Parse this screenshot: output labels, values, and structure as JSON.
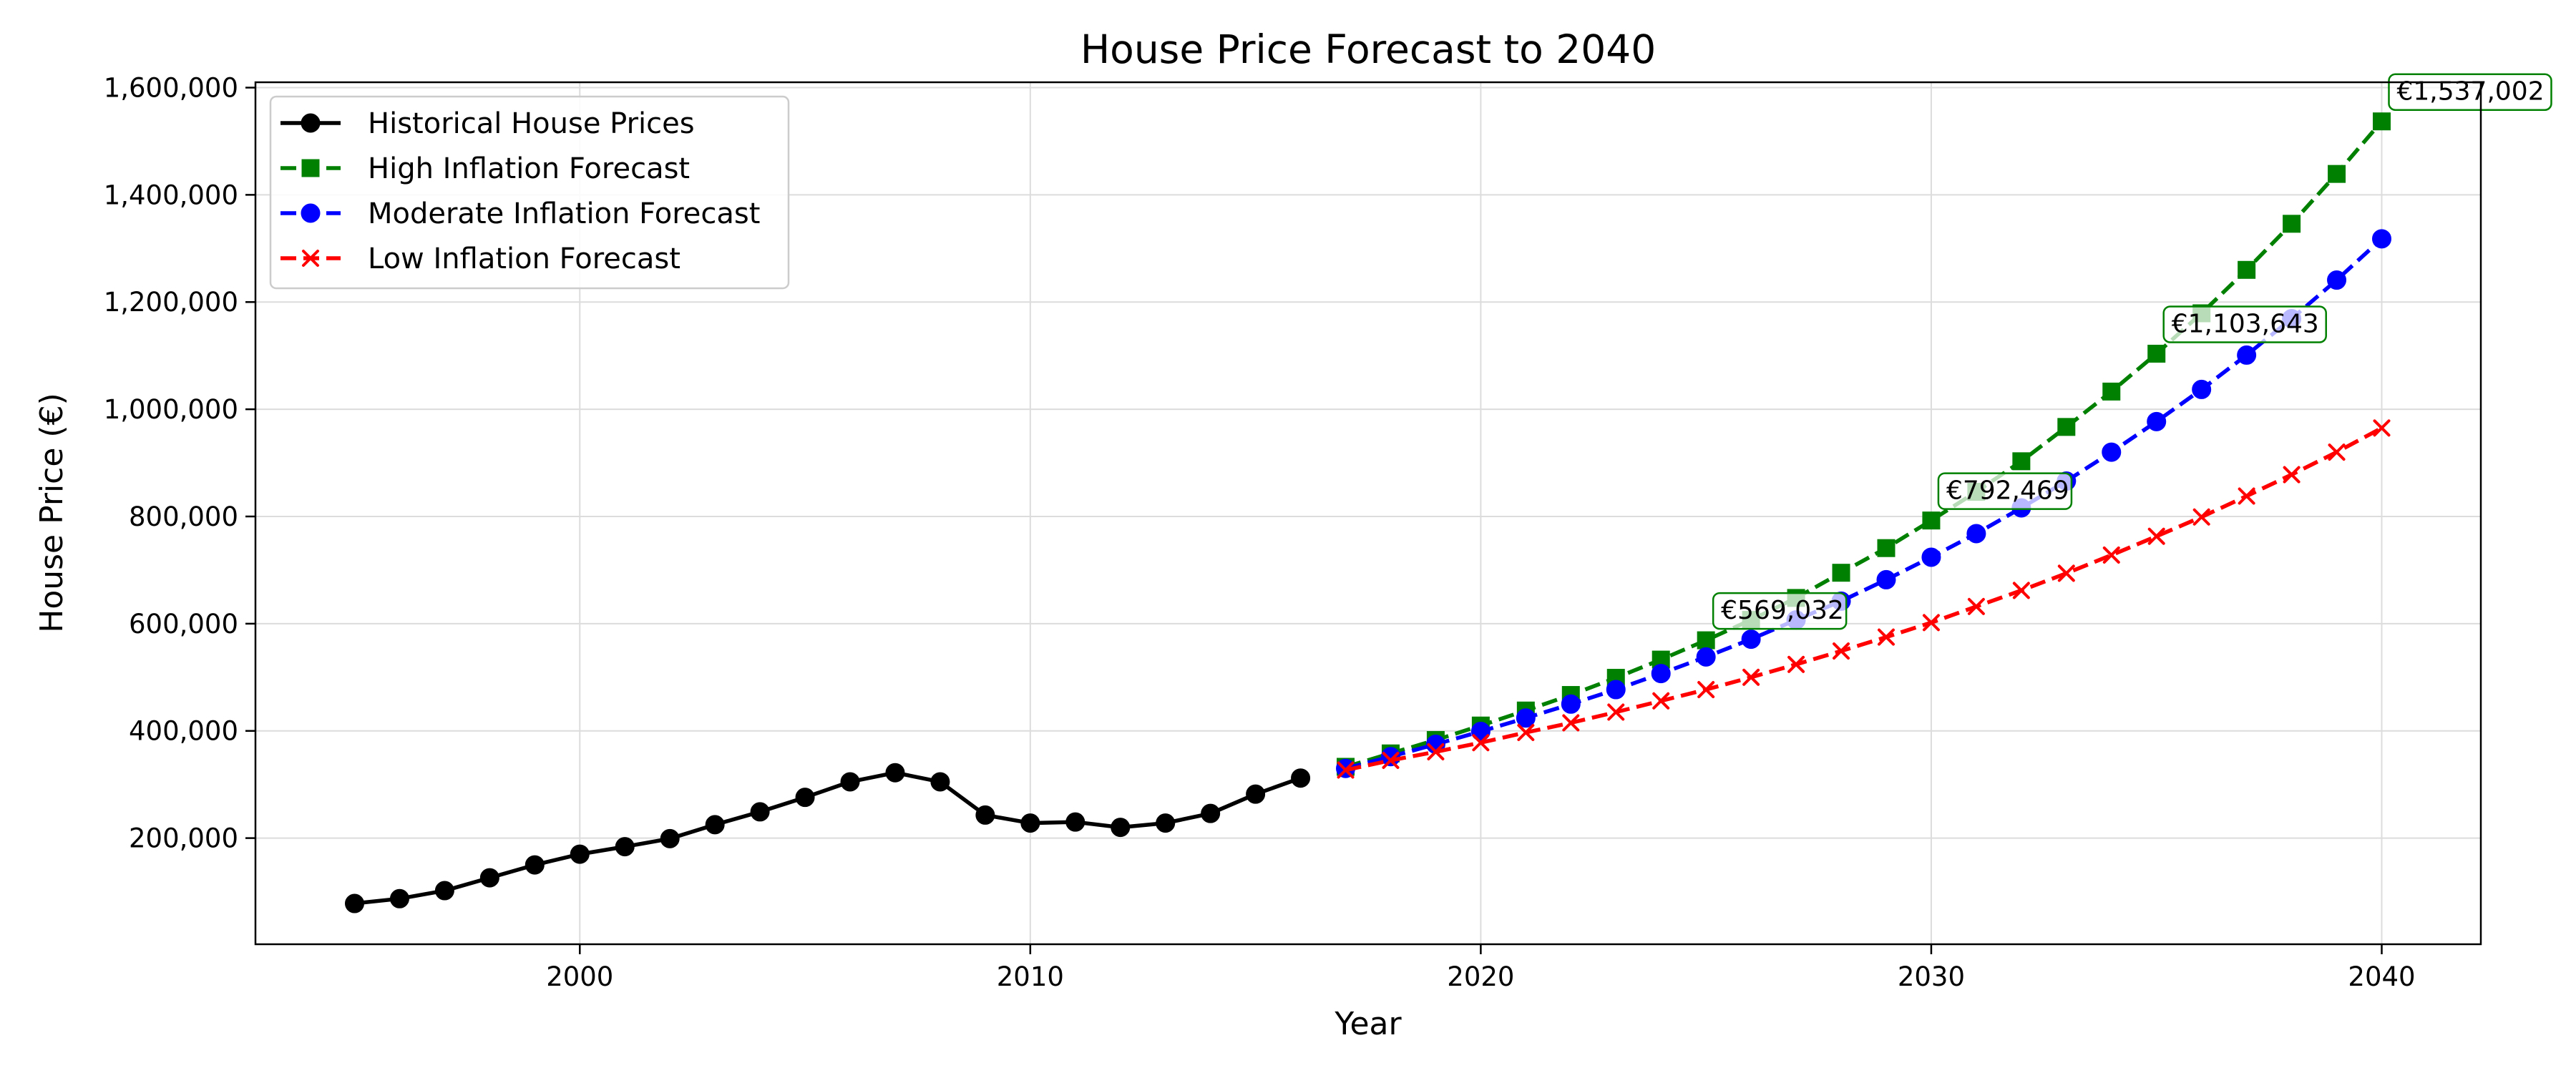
{
  "chart_data": {
    "type": "line",
    "title": "House Price Forecast to 2040",
    "xlabel": "Year",
    "ylabel": "House Price (€)",
    "xlim": [
      1992.8,
      2042.2
    ],
    "ylim": [
      2000,
      1610000
    ],
    "x_ticks": [
      2000,
      2010,
      2020,
      2030,
      2040
    ],
    "y_ticks": [
      200000,
      400000,
      600000,
      800000,
      1000000,
      1200000,
      1400000,
      1600000
    ],
    "x_tick_labels": [
      "2000",
      "2010",
      "2020",
      "2030",
      "2040"
    ],
    "y_tick_labels": [
      "200,000",
      "400,000",
      "600,000",
      "800,000",
      "1,000,000",
      "1,200,000",
      "1,400,000",
      "1,600,000"
    ],
    "grid": true,
    "legend_position": "upper-left",
    "series": [
      {
        "name": "Historical House Prices",
        "color": "#000000",
        "linestyle": "solid",
        "marker": "circle",
        "x": [
          1995,
          1996,
          1997,
          1998,
          1999,
          2000,
          2001,
          2002,
          2003,
          2004,
          2005,
          2006,
          2007,
          2008,
          2009,
          2010,
          2011,
          2012,
          2013,
          2014,
          2015,
          2016
        ],
        "y": [
          78000,
          87000,
          102000,
          126000,
          150000,
          170000,
          184000,
          199000,
          225000,
          249000,
          276000,
          305000,
          322000,
          305000,
          243000,
          228000,
          230000,
          220000,
          228000,
          246000,
          282000,
          312000
        ]
      },
      {
        "name": "High Inflation Forecast",
        "color": "#008000",
        "linestyle": "dashed",
        "marker": "square",
        "x": [
          2017,
          2018,
          2019,
          2020,
          2021,
          2022,
          2023,
          2024,
          2025,
          2026,
          2027,
          2028,
          2029,
          2030,
          2031,
          2032,
          2033,
          2034,
          2035,
          2036,
          2037,
          2038,
          2039,
          2040
        ],
        "y": [
          333000,
          358000,
          383000,
          410000,
          438000,
          467000,
          499000,
          533000,
          569032,
          607000,
          648000,
          695000,
          741000,
          792469,
          846000,
          903000,
          967000,
          1033000,
          1103643,
          1179000,
          1260000,
          1346000,
          1439000,
          1537002
        ]
      },
      {
        "name": "Moderate Inflation Forecast",
        "color": "#0000ff",
        "linestyle": "dashed",
        "marker": "circle",
        "x": [
          2017,
          2018,
          2019,
          2020,
          2021,
          2022,
          2023,
          2024,
          2025,
          2026,
          2027,
          2028,
          2029,
          2030,
          2031,
          2032,
          2033,
          2034,
          2035,
          2036,
          2037,
          2038,
          2039,
          2040
        ],
        "y": [
          330000,
          352000,
          375000,
          399000,
          424000,
          450000,
          477000,
          507000,
          538000,
          571000,
          607000,
          642000,
          682000,
          724000,
          768000,
          816000,
          866000,
          920000,
          977000,
          1037000,
          1101000,
          1169000,
          1241000,
          1318000
        ]
      },
      {
        "name": "Low Inflation Forecast",
        "color": "#ff0000",
        "linestyle": "dashed",
        "marker": "x",
        "x": [
          2017,
          2018,
          2019,
          2020,
          2021,
          2022,
          2023,
          2024,
          2025,
          2026,
          2027,
          2028,
          2029,
          2030,
          2031,
          2032,
          2033,
          2034,
          2035,
          2036,
          2037,
          2038,
          2039,
          2040
        ],
        "y": [
          327000,
          345000,
          361000,
          378000,
          397000,
          415000,
          435000,
          456000,
          477000,
          500000,
          524000,
          549000,
          575000,
          602000,
          632000,
          662000,
          694000,
          728000,
          763000,
          799000,
          838000,
          878000,
          920000,
          965000
        ]
      }
    ],
    "annotations": [
      {
        "text": "€569,032",
        "x": 2025,
        "y": 569032,
        "color": "#008000"
      },
      {
        "text": "€792,469",
        "x": 2030,
        "y": 792469,
        "color": "#008000"
      },
      {
        "text": "€1,103,643",
        "x": 2035,
        "y": 1103643,
        "color": "#008000"
      },
      {
        "text": "€1,537,002",
        "x": 2040,
        "y": 1537002,
        "color": "#008000"
      }
    ]
  }
}
